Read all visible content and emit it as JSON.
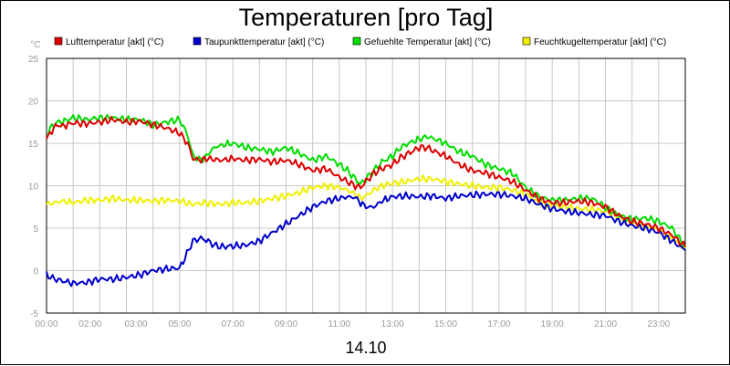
{
  "chart_data": {
    "type": "line",
    "title": "Temperaturen [pro Tag]",
    "xlabel": "14.10",
    "ylabel": "°C",
    "ylim": [
      -5,
      25
    ],
    "yticks": [
      "-5",
      "0",
      "5",
      "10",
      "15",
      "20",
      "25"
    ],
    "xlim": [
      0,
      24
    ],
    "xticks": [
      {
        "h": 0,
        "label": "00:00"
      },
      {
        "h": 2,
        "label": "02:00"
      },
      {
        "h": 3,
        "label": "03:00"
      },
      {
        "h": 5,
        "label": "05:00"
      },
      {
        "h": 7,
        "label": "07:00"
      },
      {
        "h": 9,
        "label": "09:00"
      },
      {
        "h": 11,
        "label": "11:00"
      },
      {
        "h": 13,
        "label": "13:00"
      },
      {
        "h": 15,
        "label": "15:00"
      },
      {
        "h": 17,
        "label": "17:00"
      },
      {
        "h": 19,
        "label": "19:00"
      },
      {
        "h": 21,
        "label": "21:00"
      },
      {
        "h": 23,
        "label": "23:00"
      }
    ],
    "grid": true,
    "legend_position": "top",
    "series": [
      {
        "name": "Lufttemperatur [akt] (°C)",
        "color": "#dd0000",
        "x": [
          0,
          0.2,
          0.4,
          0.6,
          0.8,
          1,
          1.5,
          2,
          2.5,
          3,
          3.5,
          4,
          4.5,
          5,
          5.3,
          5.5,
          5.8,
          6,
          6.3,
          6.6,
          7,
          7.5,
          8,
          8.5,
          9,
          9.5,
          10,
          10.5,
          11,
          11.3,
          11.6,
          11.8,
          12,
          12.3,
          12.6,
          13,
          13.3,
          13.6,
          14,
          14.3,
          14.6,
          15,
          15.5,
          16,
          16.5,
          17,
          17.5,
          18,
          18.5,
          19,
          19.5,
          20,
          20.5,
          21,
          21.5,
          22,
          22.5,
          23,
          23.5,
          24
        ],
        "values": [
          15.5,
          16.5,
          17.2,
          17.0,
          17.2,
          17.4,
          17.3,
          17.5,
          17.8,
          17.5,
          17.6,
          17.2,
          16.8,
          16.2,
          15.0,
          13.2,
          13.0,
          13.2,
          13.1,
          13.0,
          13.2,
          13.0,
          13.1,
          12.8,
          13.0,
          12.5,
          11.8,
          12.0,
          11.0,
          10.5,
          10.0,
          9.8,
          10.5,
          11.5,
          12.0,
          12.5,
          13.3,
          13.8,
          14.5,
          14.5,
          14.0,
          13.5,
          12.5,
          11.8,
          11.5,
          11.0,
          10.5,
          9.5,
          8.5,
          8.0,
          8.0,
          8.2,
          8.0,
          7.5,
          6.5,
          5.8,
          5.5,
          5.0,
          4.2,
          2.8
        ]
      },
      {
        "name": "Taupunkttemperatur [akt] (°C)",
        "color": "#0000cc",
        "x": [
          0,
          0.3,
          0.6,
          1,
          1.5,
          2,
          2.5,
          3,
          3.5,
          4,
          4.5,
          5,
          5.2,
          5.5,
          5.8,
          6,
          6.3,
          6.6,
          7,
          7.5,
          8,
          8.5,
          9,
          9.5,
          10,
          10.5,
          11,
          11.3,
          11.6,
          11.8,
          12,
          12.3,
          12.6,
          13,
          13.5,
          14,
          14.5,
          15,
          15.5,
          16,
          16.5,
          17,
          17.5,
          18,
          18.5,
          19,
          19.5,
          20,
          20.5,
          21,
          21.5,
          22,
          22.5,
          23,
          23.5,
          24
        ],
        "values": [
          -0.5,
          -1.0,
          -1.2,
          -1.5,
          -1.4,
          -1.0,
          -1.0,
          -0.8,
          -0.5,
          0.0,
          0.2,
          0.3,
          1.5,
          3.5,
          3.8,
          3.6,
          3.0,
          2.8,
          2.9,
          3.0,
          3.5,
          4.5,
          5.5,
          6.5,
          7.5,
          8.2,
          8.5,
          8.7,
          8.6,
          8.0,
          7.5,
          7.5,
          8.2,
          8.7,
          8.8,
          8.7,
          8.8,
          8.5,
          8.8,
          8.9,
          9.0,
          9.0,
          8.8,
          8.5,
          7.8,
          7.3,
          7.0,
          6.8,
          6.6,
          6.5,
          5.8,
          5.3,
          5.0,
          4.5,
          3.5,
          2.4
        ]
      },
      {
        "name": "Gefuehlte Temperatur [akt] (°C)",
        "color": "#00dd00",
        "x": [
          0,
          0.2,
          0.4,
          0.6,
          0.8,
          1,
          1.5,
          2,
          2.5,
          3,
          3.5,
          4,
          4.5,
          5,
          5.3,
          5.5,
          5.8,
          6,
          6.3,
          6.6,
          7,
          7.5,
          8,
          8.5,
          9,
          9.5,
          10,
          10.5,
          11,
          11.3,
          11.6,
          11.8,
          12,
          12.3,
          12.6,
          13,
          13.3,
          13.6,
          14,
          14.3,
          14.6,
          15,
          15.5,
          16,
          16.5,
          17,
          17.5,
          18,
          18.5,
          19,
          19.5,
          20,
          20.5,
          21,
          21.5,
          22,
          22.5,
          23,
          23.5,
          24
        ],
        "values": [
          16.0,
          17.0,
          17.5,
          17.5,
          17.8,
          18.0,
          17.8,
          18.0,
          18.0,
          17.8,
          17.8,
          17.2,
          17.5,
          17.8,
          16.0,
          13.5,
          13.0,
          13.5,
          14.5,
          14.8,
          15.0,
          14.5,
          14.3,
          14.0,
          14.5,
          13.8,
          13.0,
          13.5,
          12.5,
          11.8,
          10.8,
          10.2,
          10.8,
          11.8,
          12.8,
          13.5,
          14.5,
          15.0,
          15.5,
          15.8,
          15.5,
          15.0,
          14.0,
          13.5,
          12.5,
          12.0,
          11.5,
          9.8,
          8.7,
          8.3,
          8.3,
          8.5,
          8.5,
          7.5,
          6.5,
          6.0,
          6.2,
          5.8,
          5.0,
          2.8
        ]
      },
      {
        "name": "Feuchtkugeltemperatur [akt] (°C)",
        "color": "#f0f000",
        "x": [
          0,
          0.3,
          0.6,
          1,
          1.5,
          2,
          2.5,
          3,
          3.5,
          4,
          4.5,
          5,
          5.5,
          6,
          6.5,
          7,
          7.5,
          8,
          8.5,
          9,
          9.5,
          10,
          10.5,
          11,
          11.3,
          11.6,
          11.8,
          12,
          12.3,
          12.6,
          13,
          13.5,
          14,
          14.5,
          15,
          15.5,
          16,
          16.5,
          17,
          17.5,
          18,
          18.5,
          19,
          19.5,
          20,
          20.5,
          21,
          21.5,
          22,
          22.5,
          23,
          23.5,
          24
        ],
        "values": [
          7.8,
          8.0,
          8.2,
          8.0,
          8.3,
          8.3,
          8.5,
          8.3,
          8.3,
          8.2,
          8.3,
          8.2,
          7.8,
          8.0,
          7.8,
          8.0,
          8.0,
          8.2,
          8.5,
          8.8,
          9.2,
          9.8,
          10.0,
          9.8,
          9.5,
          9.0,
          8.5,
          8.8,
          9.5,
          10.0,
          10.3,
          10.5,
          10.8,
          10.8,
          10.5,
          10.2,
          10.0,
          9.8,
          9.8,
          9.5,
          9.0,
          8.0,
          7.6,
          7.5,
          7.3,
          7.2,
          7.0,
          6.3,
          5.6,
          5.2,
          4.8,
          3.8,
          2.6
        ]
      }
    ]
  }
}
